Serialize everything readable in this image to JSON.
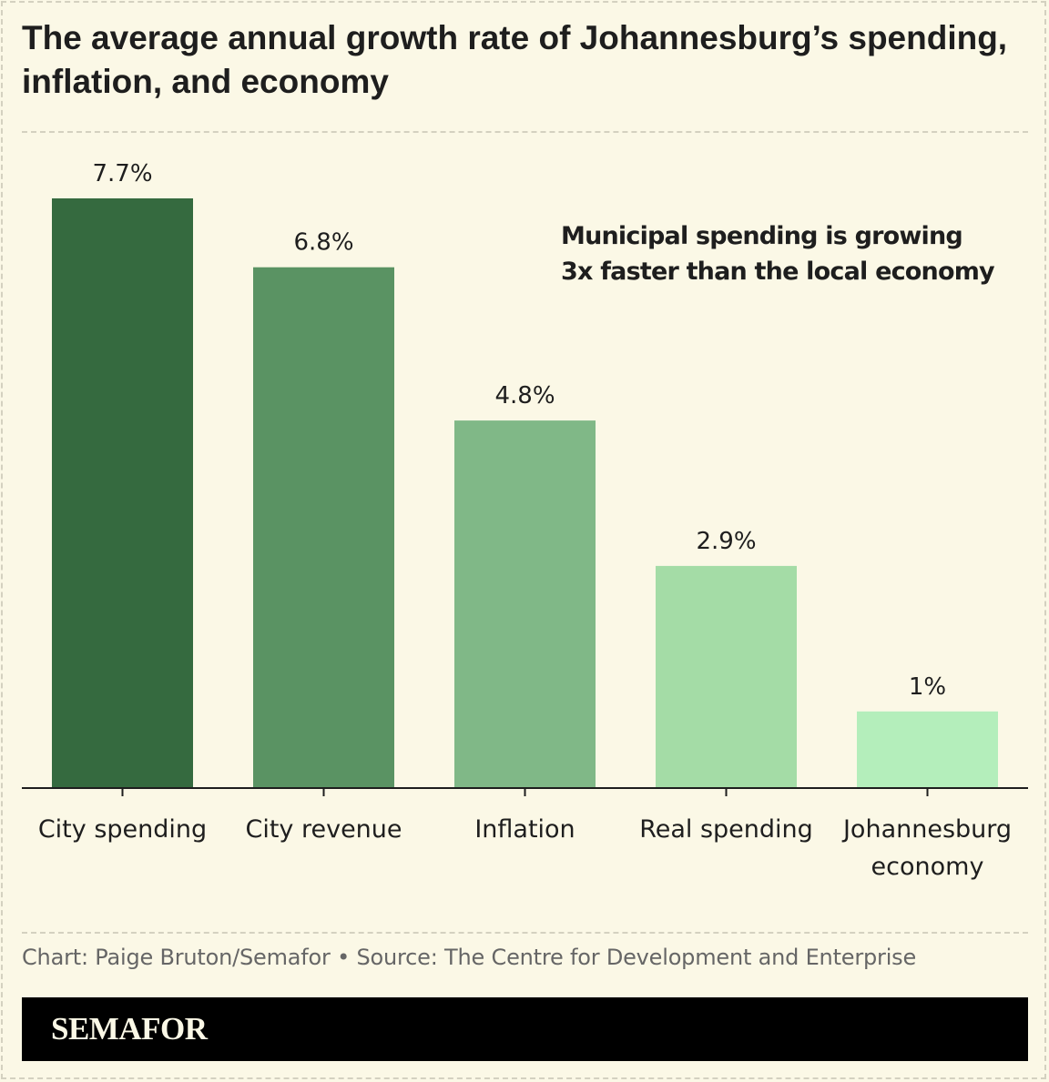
{
  "title": "The average annual growth rate of Johannesburg’s spending, inflation, and economy",
  "annotation": "Municipal spending is growing 3x faster than the local economy",
  "credit": "Chart: Paige Bruton/Semafor • Source: The Centre for Development and Enterprise",
  "logo": "SEMAFOR",
  "chart_data": {
    "type": "bar",
    "title": "The average annual growth rate of Johannesburg’s spending, inflation, and economy",
    "categories": [
      [
        "City spending"
      ],
      [
        "City revenue"
      ],
      [
        "Inflation"
      ],
      [
        "Real spending"
      ],
      [
        "Johannesburg",
        "economy"
      ]
    ],
    "values": [
      7.7,
      6.8,
      4.8,
      2.9,
      1.0
    ],
    "value_labels": [
      "7.7%",
      "6.8%",
      "4.8%",
      "2.9%",
      "1%"
    ],
    "colors": [
      "#356a3f",
      "#5a9363",
      "#80b887",
      "#a4dca6",
      "#b4eebb"
    ],
    "unit": "%",
    "xlabel": "",
    "ylabel": "",
    "ylim": [
      0,
      7.7
    ],
    "grid": false,
    "legend": "none"
  },
  "colors": {
    "background": "#fbf8e6",
    "text": "#1e1e1e",
    "credit_text": "#666666",
    "axis": "#1e1e1e",
    "logo_bar": "#000000",
    "logo_text": "#fbf8e6"
  }
}
